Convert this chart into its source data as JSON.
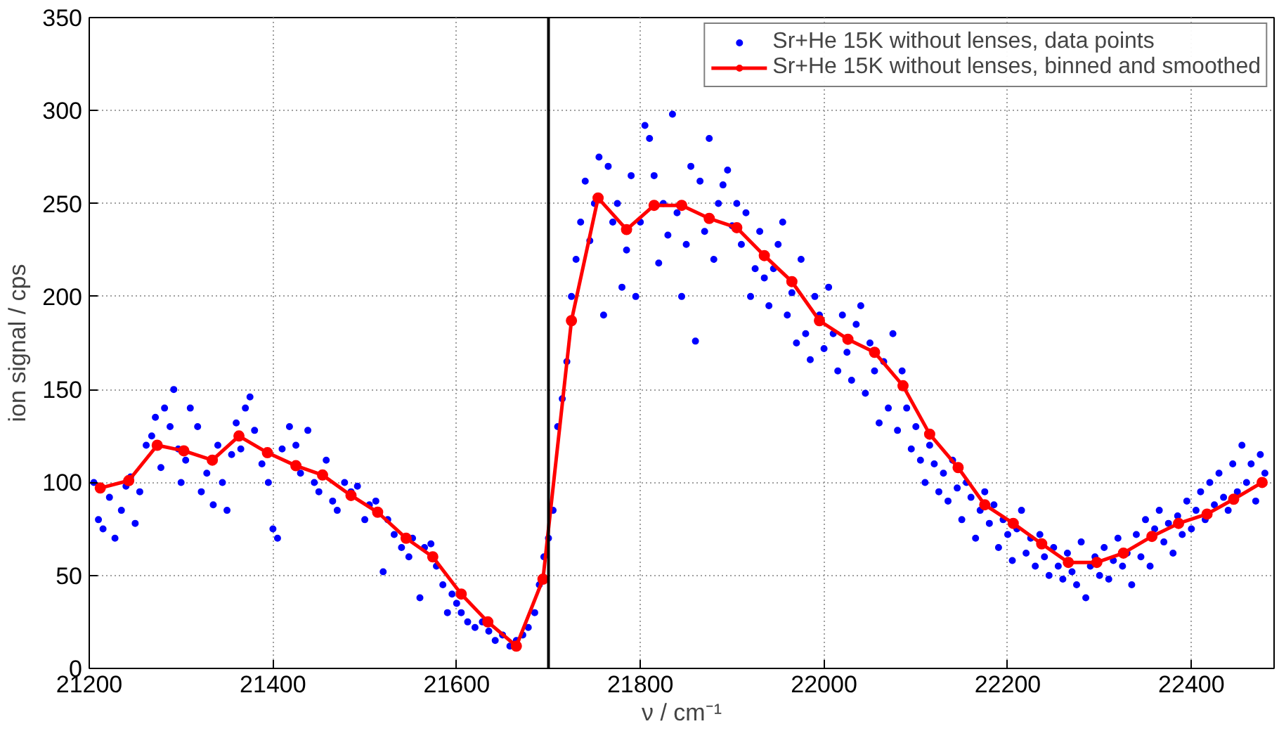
{
  "chart_data": {
    "type": "line",
    "xlabel": "ν / cm⁻¹",
    "ylabel": "ion signal / cps",
    "xlim": [
      21200,
      22490
    ],
    "ylim": [
      0,
      350
    ],
    "xticks": [
      21200,
      21400,
      21600,
      21800,
      22000,
      22200,
      22400
    ],
    "yticks": [
      0,
      50,
      100,
      150,
      200,
      250,
      300,
      350
    ],
    "grid": true,
    "legend": "top right",
    "ref_lines": [
      {
        "axis": "x",
        "value": 21700,
        "color": "#000000",
        "line_style": "solid"
      }
    ],
    "series": [
      {
        "name": "Sr+He 15K without lenses, data points",
        "type": "scatter",
        "color": "#0000ff",
        "marker": "circle",
        "x": [
          21205,
          21210,
          21215,
          21222,
          21228,
          21235,
          21240,
          21245,
          21250,
          21255,
          21262,
          21268,
          21272,
          21278,
          21282,
          21288,
          21292,
          21297,
          21300,
          21305,
          21310,
          21318,
          21322,
          21328,
          21335,
          21340,
          21345,
          21350,
          21355,
          21360,
          21365,
          21370,
          21375,
          21380,
          21388,
          21395,
          21400,
          21405,
          21410,
          21418,
          21425,
          21430,
          21438,
          21445,
          21450,
          21458,
          21465,
          21470,
          21478,
          21485,
          21492,
          21500,
          21505,
          21512,
          21520,
          21525,
          21532,
          21540,
          21548,
          21552,
          21560,
          21565,
          21572,
          21578,
          21585,
          21590,
          21595,
          21600,
          21605,
          21612,
          21620,
          21628,
          21635,
          21642,
          21650,
          21658,
          21665,
          21672,
          21678,
          21685,
          21690,
          21695,
          21700,
          21705,
          21710,
          21715,
          21720,
          21725,
          21730,
          21735,
          21740,
          21745,
          21750,
          21755,
          21760,
          21765,
          21770,
          21775,
          21780,
          21785,
          21790,
          21795,
          21800,
          21805,
          21810,
          21815,
          21820,
          21825,
          21830,
          21835,
          21840,
          21845,
          21850,
          21855,
          21860,
          21865,
          21870,
          21875,
          21880,
          21885,
          21890,
          21895,
          21900,
          21905,
          21910,
          21915,
          21920,
          21925,
          21930,
          21935,
          21940,
          21945,
          21950,
          21955,
          21960,
          21965,
          21970,
          21975,
          21980,
          21985,
          21990,
          21995,
          22000,
          22005,
          22010,
          22015,
          22020,
          22025,
          22030,
          22035,
          22040,
          22045,
          22050,
          22055,
          22060,
          22065,
          22070,
          22075,
          22080,
          22085,
          22090,
          22095,
          22100,
          22105,
          22110,
          22115,
          22120,
          22125,
          22130,
          22135,
          22140,
          22145,
          22150,
          22155,
          22160,
          22165,
          22170,
          22175,
          22180,
          22185,
          22190,
          22195,
          22200,
          22205,
          22210,
          22215,
          22220,
          22225,
          22230,
          22235,
          22240,
          22245,
          22250,
          22255,
          22260,
          22265,
          22270,
          22275,
          22280,
          22285,
          22290,
          22295,
          22300,
          22305,
          22310,
          22315,
          22320,
          22325,
          22330,
          22335,
          22340,
          22345,
          22350,
          22355,
          22360,
          22365,
          22370,
          22375,
          22380,
          22385,
          22390,
          22395,
          22400,
          22405,
          22410,
          22415,
          22420,
          22425,
          22430,
          22435,
          22440,
          22445,
          22450,
          22455,
          22460,
          22465,
          22470,
          22475,
          22480
        ],
        "values": [
          100,
          80,
          75,
          92,
          70,
          85,
          98,
          103,
          78,
          95,
          120,
          125,
          135,
          108,
          140,
          130,
          150,
          118,
          100,
          112,
          140,
          130,
          95,
          105,
          88,
          120,
          100,
          85,
          115,
          132,
          118,
          140,
          146,
          128,
          110,
          100,
          75,
          70,
          118,
          130,
          120,
          105,
          128,
          100,
          95,
          112,
          90,
          85,
          100,
          95,
          98,
          80,
          88,
          90,
          52,
          80,
          72,
          65,
          60,
          70,
          38,
          65,
          67,
          55,
          45,
          30,
          40,
          35,
          30,
          25,
          22,
          25,
          20,
          15,
          18,
          12,
          15,
          18,
          22,
          30,
          45,
          60,
          70,
          85,
          130,
          145,
          165,
          200,
          220,
          240,
          262,
          230,
          250,
          275,
          190,
          270,
          240,
          250,
          205,
          225,
          265,
          200,
          240,
          292,
          285,
          265,
          218,
          250,
          233,
          298,
          245,
          200,
          228,
          270,
          176,
          262,
          235,
          285,
          220,
          250,
          260,
          268,
          238,
          250,
          228,
          245,
          200,
          215,
          235,
          210,
          195,
          215,
          228,
          240,
          190,
          202,
          175,
          220,
          180,
          166,
          200,
          190,
          172,
          205,
          180,
          160,
          190,
          170,
          155,
          185,
          195,
          148,
          175,
          160,
          132,
          165,
          140,
          180,
          128,
          160,
          140,
          118,
          130,
          112,
          100,
          120,
          110,
          95,
          105,
          90,
          112,
          97,
          80,
          100,
          92,
          70,
          85,
          95,
          78,
          88,
          65,
          80,
          72,
          58,
          75,
          85,
          62,
          70,
          55,
          72,
          60,
          50,
          65,
          55,
          48,
          62,
          52,
          45,
          68,
          38,
          55,
          60,
          50,
          65,
          48,
          58,
          70,
          55,
          62,
          45,
          72,
          60,
          80,
          55,
          75,
          85,
          68,
          78,
          62,
          82,
          72,
          90,
          75,
          85,
          95,
          80,
          100,
          88,
          105,
          92,
          85,
          110,
          95,
          120,
          100,
          110,
          90,
          115,
          105
        ]
      },
      {
        "name": "Sr+He 15K without lenses, binned and smoothed",
        "color": "#ff0000",
        "marker": "circle",
        "line_style": "solid",
        "x": [
          21212,
          21243,
          21274,
          21303,
          21334,
          21363,
          21394,
          21425,
          21454,
          21485,
          21514,
          21545,
          21574,
          21605,
          21634,
          21665,
          21694,
          21725,
          21754,
          21785,
          21815,
          21845,
          21875,
          21905,
          21935,
          21965,
          21995,
          22026,
          22055,
          22086,
          22115,
          22146,
          22175,
          22206,
          22237,
          22266,
          22297,
          22326,
          22357,
          22386,
          22417,
          22446,
          22477
        ],
        "values": [
          97,
          101,
          120,
          117,
          112,
          125,
          116,
          109,
          104,
          93,
          84,
          70,
          60,
          40,
          25,
          12,
          48,
          187,
          253,
          236,
          249,
          249,
          242,
          237,
          222,
          208,
          187,
          177,
          170,
          152,
          126,
          108,
          88,
          78,
          67,
          57,
          57,
          62,
          71,
          78,
          83,
          91,
          100
        ]
      }
    ]
  }
}
